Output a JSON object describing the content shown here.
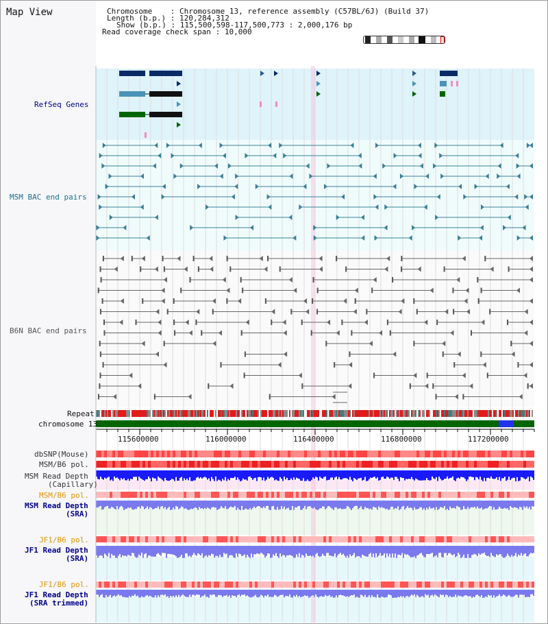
{
  "app": {
    "title": "Map View"
  },
  "info": {
    "chromosome_key": "Chromosome",
    "chromosome_val": "Chromosome 13, reference assembly (C57BL/6J) (Build 37)",
    "length_key": "Length (b.p.)",
    "length_val": "120,284,312",
    "show_key": "Show (b.p.)",
    "show_val": "115,500,598-117,500,773 : 2,000,176 bp",
    "span_key": "Read coverage check span",
    "span_val": "10,000"
  },
  "tracks": {
    "refseq": "RefSeq Genes",
    "msm_bac": "MSM BAC end pairs",
    "b6n_bac": "B6N BAC end pairs",
    "repeat": "Repeat",
    "chrom": "chromosome 13",
    "dbsnp": "dbSNP(Mouse)",
    "msm_b6_pol": "MSM/B6 pol.",
    "msm_depth_cap_1": "MSM Read Depth",
    "msm_depth_cap_2": "(Capillary)",
    "msm_b6_pol_sra": "MSM/B6 pol.",
    "msm_depth_sra_1": "MSM Read Depth",
    "msm_depth_sra_2": "(SRA)",
    "jf1_b6_pol": "JF1/B6 pol.",
    "jf1_depth_sra_1": "JF1 Read Depth",
    "jf1_depth_sra_2": "(SRA)",
    "jf1_b6_pol_trim": "JF1/B6 pol.",
    "jf1_depth_trim_1": "JF1 Read Depth",
    "jf1_depth_trim_2": "(SRA trimmed)"
  },
  "axis": {
    "ticks": [
      "115600000",
      "116000000",
      "116400000",
      "116800000",
      "117200000"
    ]
  },
  "colors": {
    "refseq_bg": "#dff3fb",
    "msm_bac_bg": "#eefbfb",
    "bac_line": "#3a7f97",
    "b6n_line": "#666666",
    "chrom_green": "#006400",
    "depth_blue": "#1a1aff",
    "depth_purple": "#7a7aee",
    "polymorph_red": "#ee3333",
    "label_blue": "#00008b",
    "label_teal": "#1a6e8e",
    "label_gray": "#555555",
    "label_orange": "#e69500"
  }
}
